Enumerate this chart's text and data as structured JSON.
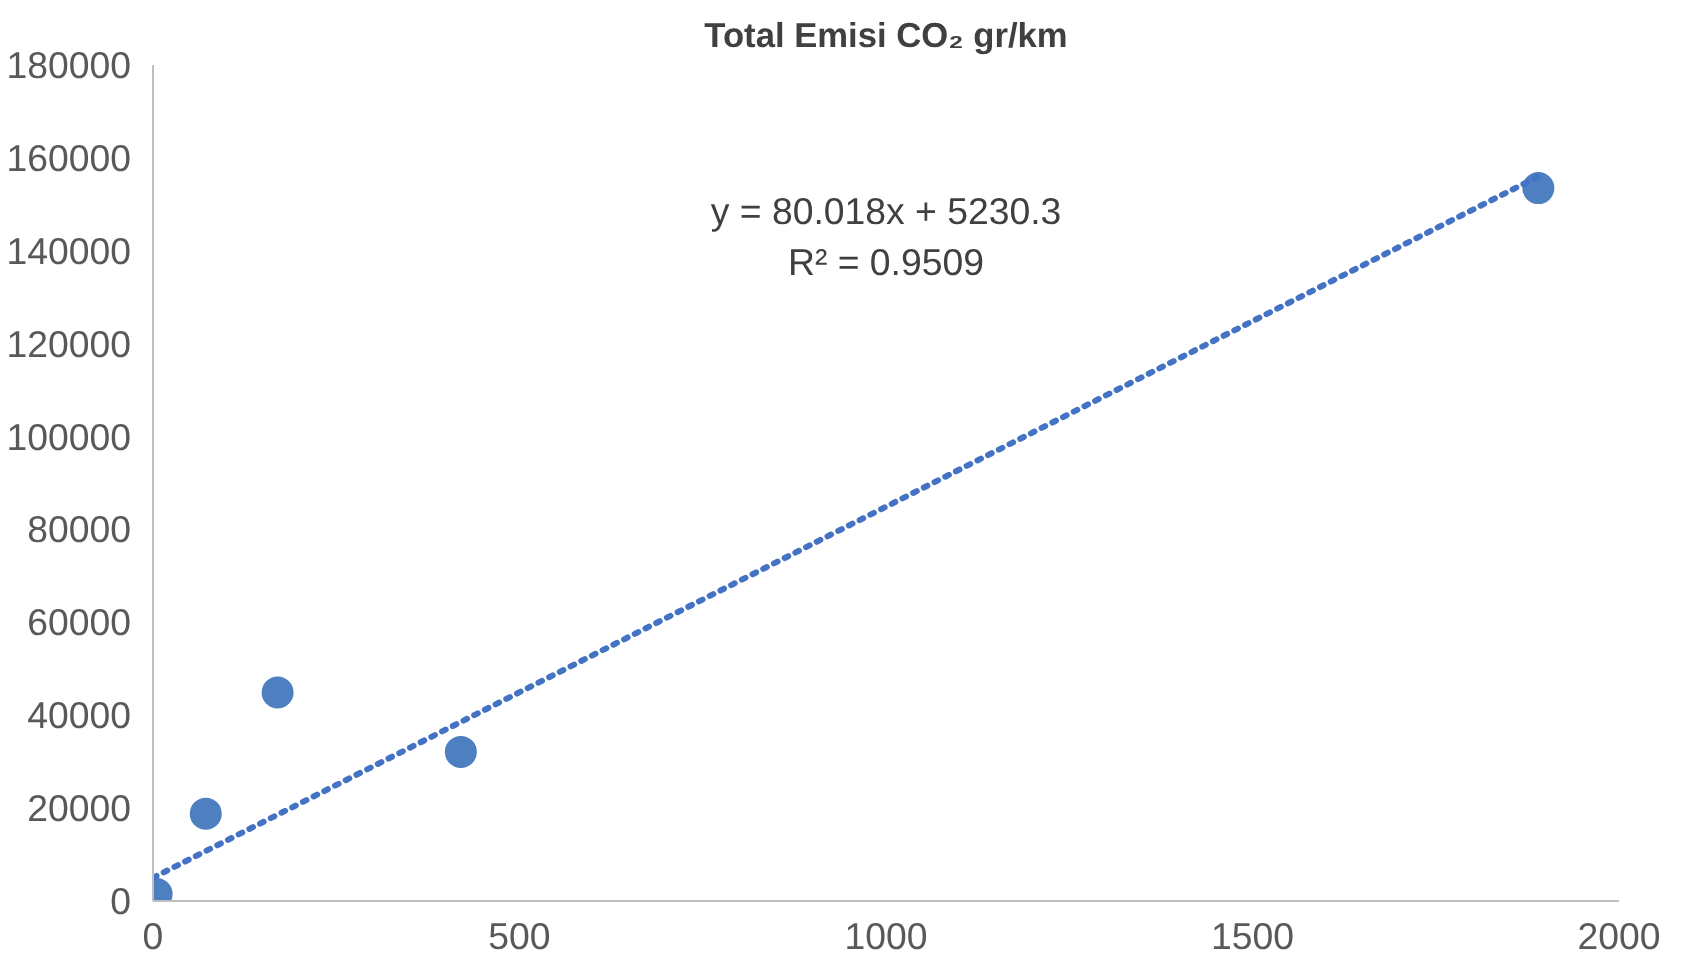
{
  "chart_data": {
    "type": "scatter",
    "title": "Total Emisi CO₂ gr/km",
    "xlim": [
      0,
      2000
    ],
    "xticks": [
      0,
      500,
      1000,
      1500,
      2000
    ],
    "ylim": [
      0,
      180000
    ],
    "yticks": [
      0,
      20000,
      40000,
      60000,
      80000,
      100000,
      120000,
      140000,
      160000,
      180000
    ],
    "grid": false,
    "series": [
      {
        "color": "#4e7fc0",
        "marker": "circle",
        "x": [
          5,
          72,
          170,
          420,
          1890
        ],
        "values": [
          1500,
          18800,
          44900,
          32100,
          153500
        ]
      },
      {
        "type": "line",
        "line_style": "dotted",
        "color": "#4472c4",
        "x": [
          0,
          1890
        ],
        "values": [
          5000,
          156000
        ]
      }
    ],
    "annotations": [
      "y = 80.018x + 5230.3\nR² = 0.9509"
    ]
  }
}
